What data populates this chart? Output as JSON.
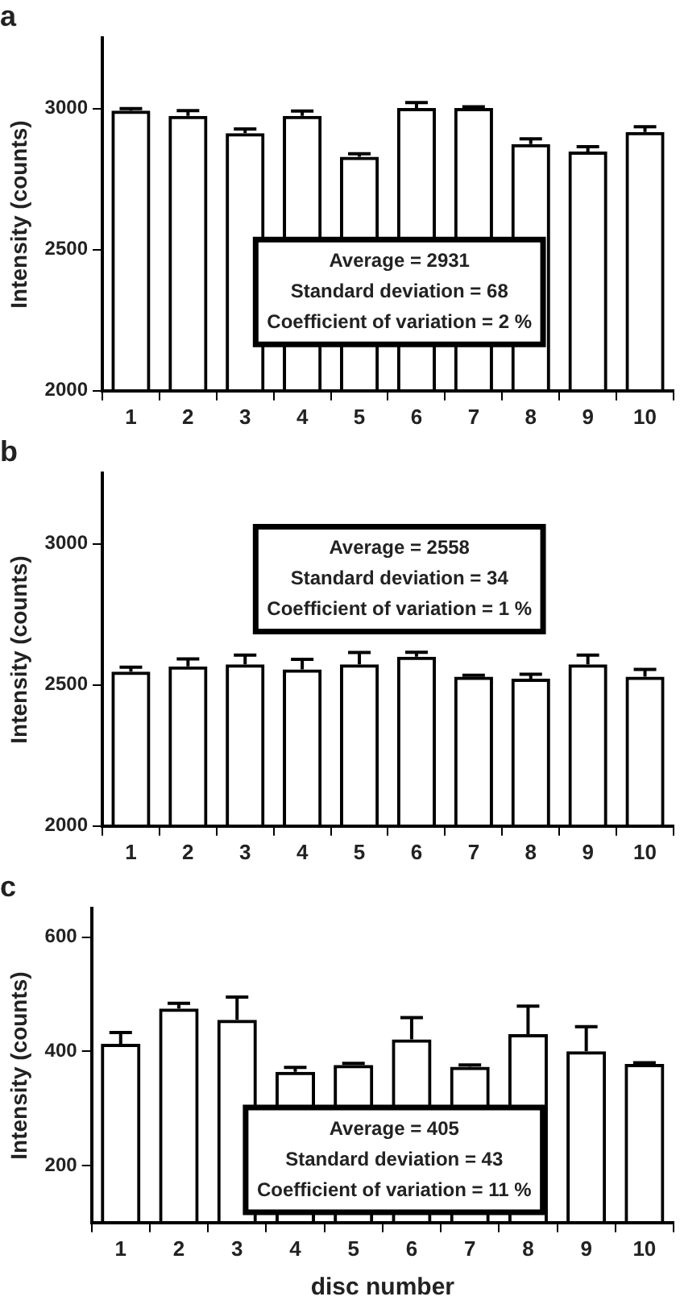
{
  "chart_data": [
    {
      "type": "bar",
      "title": "a",
      "ylabel": "Intensity (counts)",
      "categories": [
        "1",
        "2",
        "3",
        "4",
        "5",
        "6",
        "7",
        "8",
        "9",
        "10"
      ],
      "series": [
        {
          "color": "#000000",
          "values": [
            2993,
            2974,
            2913,
            2974,
            2829,
            3002,
            3002,
            2874,
            2848,
            2917
          ],
          "errors": [
            [
              2993,
              3000
            ],
            [
              2974,
              2993
            ],
            [
              2913,
              2928
            ],
            [
              2974,
              2991
            ],
            [
              2829,
              2840
            ],
            [
              3002,
              3021
            ],
            [
              3002,
              3006
            ],
            [
              2874,
              2893
            ],
            [
              2848,
              2865
            ],
            [
              2917,
              2936
            ]
          ]
        }
      ],
      "ylim": [
        2000,
        3250
      ],
      "yticks": [
        2000,
        2500,
        3000
      ],
      "annotations": [
        "Average = 2931",
        "Standard deviation = 68",
        "Coefficient of variation = 2 %"
      ]
    },
    {
      "type": "bar",
      "title": "b",
      "ylabel": "Intensity (counts)",
      "categories": [
        "1",
        "2",
        "3",
        "4",
        "5",
        "6",
        "7",
        "8",
        "9",
        "10"
      ],
      "series": [
        {
          "color": "#000000",
          "values": [
            2547,
            2566,
            2573,
            2555,
            2573,
            2600,
            2529,
            2522,
            2573,
            2529
          ],
          "errors": [
            [
              2547,
              2563
            ],
            [
              2566,
              2592
            ],
            [
              2573,
              2606
            ],
            [
              2555,
              2591
            ],
            [
              2573,
              2615
            ],
            [
              2600,
              2616
            ],
            [
              2529,
              2534
            ],
            [
              2522,
              2538
            ],
            [
              2573,
              2606
            ],
            [
              2529,
              2555
            ]
          ]
        }
      ],
      "ylim": [
        2000,
        3250
      ],
      "yticks": [
        2000,
        2500,
        3000
      ],
      "annotations": [
        "Average = 2558",
        "Standard deviation = 34",
        "Coefficient of variation = 1 %"
      ]
    },
    {
      "type": "bar",
      "title": "c",
      "ylabel": "Intensity (counts)",
      "xlabel": "disc number",
      "categories": [
        "1",
        "2",
        "3",
        "4",
        "5",
        "6",
        "7",
        "8",
        "9",
        "10"
      ],
      "series": [
        {
          "color": "#000000",
          "values": [
            413,
            475,
            455,
            364,
            376,
            421,
            373,
            430,
            400,
            378
          ],
          "errors": [
            [
              413,
              433
            ],
            [
              475,
              484
            ],
            [
              455,
              495
            ],
            [
              364,
              372
            ],
            [
              376,
              379
            ],
            [
              421,
              459
            ],
            [
              373,
              376
            ],
            [
              430,
              479
            ],
            [
              400,
              443
            ],
            [
              378,
              380
            ]
          ]
        }
      ],
      "ylim": [
        100,
        650
      ],
      "yticks": [
        200,
        400,
        600
      ],
      "annotations": [
        "Average = 405",
        "Standard deviation = 43",
        "Coefficient of variation = 11 %"
      ]
    }
  ]
}
